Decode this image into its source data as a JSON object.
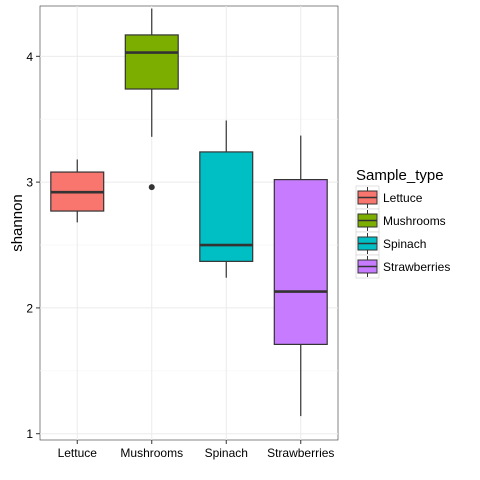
{
  "chart_data": {
    "type": "box",
    "xlabel": "",
    "ylabel": "shannon",
    "categories": [
      "Lettuce",
      "Mushrooms",
      "Spinach",
      "Strawberries"
    ],
    "ylim": [
      0.95,
      4.4
    ],
    "yticks": [
      1,
      2,
      3,
      4
    ],
    "grid": true,
    "legend": {
      "title": "Sample_type",
      "entries": [
        "Lettuce",
        "Mushrooms",
        "Spinach",
        "Strawberries"
      ],
      "placement": "right"
    },
    "series": [
      {
        "category": "Lettuce",
        "min": 2.68,
        "q1": 2.77,
        "median": 2.92,
        "q3": 3.08,
        "max": 3.18,
        "outliers": [],
        "color": "#F8766D"
      },
      {
        "category": "Mushrooms",
        "min": 3.36,
        "q1": 3.74,
        "median": 4.03,
        "q3": 4.17,
        "max": 4.38,
        "outliers": [
          2.96
        ],
        "color": "#7CAE00"
      },
      {
        "category": "Spinach",
        "min": 2.24,
        "q1": 2.37,
        "median": 2.5,
        "q3": 3.24,
        "max": 3.49,
        "outliers": [],
        "color": "#00BFC4"
      },
      {
        "category": "Strawberries",
        "min": 1.14,
        "q1": 1.71,
        "median": 2.13,
        "q3": 3.02,
        "max": 3.37,
        "outliers": [],
        "color": "#C77CFF"
      }
    ]
  }
}
